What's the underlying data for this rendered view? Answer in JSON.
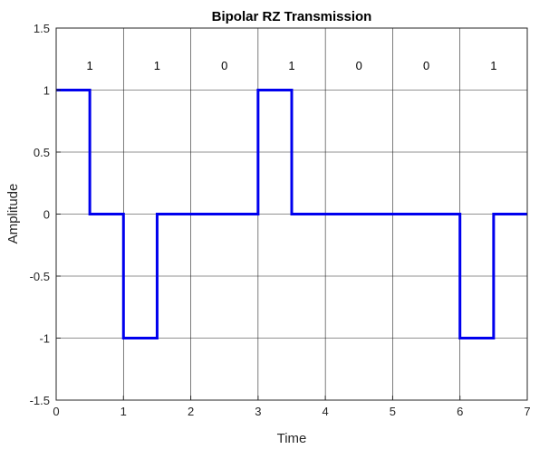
{
  "chart_data": {
    "type": "line",
    "title": "Bipolar RZ Transmission",
    "xlabel": "Time",
    "ylabel": "Amplitude",
    "xlim": [
      0,
      7
    ],
    "ylim": [
      -1.5,
      1.5
    ],
    "x_ticks": [
      "0",
      "1",
      "2",
      "3",
      "4",
      "5",
      "6",
      "7"
    ],
    "y_ticks": [
      "1.5",
      "1",
      "0.5",
      "0",
      "-0.5",
      "-1",
      "-1.5"
    ],
    "grid": true,
    "bits": [
      "1",
      "1",
      "0",
      "1",
      "0",
      "0",
      "1"
    ],
    "series": [
      {
        "color": "#0000ee",
        "x": [
          0,
          0.5,
          0.5,
          1,
          1,
          1.5,
          1.5,
          3,
          3,
          3.5,
          3.5,
          6,
          6,
          6.5,
          6.5,
          7
        ],
        "y": [
          1,
          1,
          0,
          0,
          -1,
          -1,
          0,
          0,
          1,
          1,
          0,
          0,
          -1,
          -1,
          0,
          0
        ]
      }
    ]
  }
}
